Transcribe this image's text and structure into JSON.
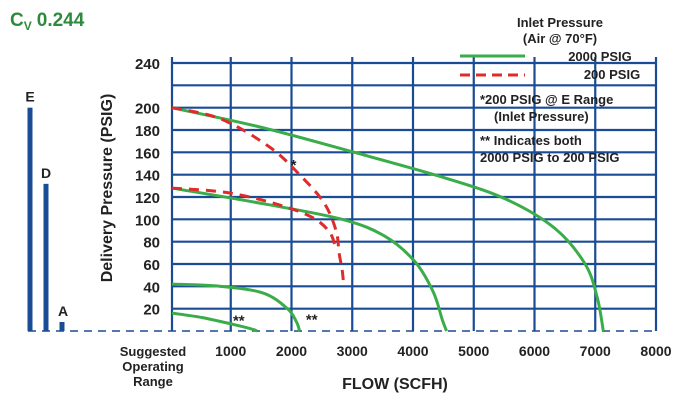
{
  "header": {
    "cv_prefix": "C",
    "cv_sub": "V",
    "cv_value": "0.244"
  },
  "legend": {
    "title_line1": "Inlet Pressure",
    "title_line2": "(Air @ 70°F)",
    "entries": [
      {
        "label": "2000 PSIG",
        "style": "solid",
        "color": "#3aac4a"
      },
      {
        "label": "200 PSIG",
        "style": "dashed",
        "color": "#e02b2b"
      }
    ]
  },
  "notes": {
    "asterisk_line1": "*200 PSIG @ E Range",
    "asterisk_line2": "(Inlet Pressure)",
    "double_line1": "** Indicates both",
    "double_line2": "2000 PSIG to 200 PSIG"
  },
  "range_label": {
    "line1": "Suggested",
    "line2": "Operating",
    "line3": "Range"
  },
  "colors": {
    "title": "#2e8a3e",
    "grid": "#1a4c96",
    "solid": "#3aac4a",
    "dashed": "#e02b2b",
    "text": "#222222"
  },
  "chart_data": {
    "type": "line",
    "xlabel": "FLOW (SCFH)",
    "ylabel": "Delivery Pressure (PSIG)",
    "xlim": [
      0,
      8000
    ],
    "ylim": [
      0,
      240
    ],
    "x_ticks": [
      1000,
      2000,
      3000,
      4000,
      5000,
      6000,
      7000,
      8000
    ],
    "y_ticks": [
      20,
      40,
      60,
      80,
      100,
      120,
      140,
      160,
      180,
      200,
      240
    ],
    "grid": true,
    "legend_position": "top-right",
    "ranges": [
      {
        "label": "E",
        "max": 200
      },
      {
        "label": "D",
        "max": 130
      },
      {
        "label": "A",
        "max": 5
      }
    ],
    "series": [
      {
        "name": "2000 PSIG",
        "style": "solid",
        "points": [
          [
            0,
            200
          ],
          [
            1500,
            182
          ],
          [
            3000,
            160
          ],
          [
            4500,
            137
          ],
          [
            5500,
            118
          ],
          [
            6300,
            92
          ],
          [
            6800,
            60
          ],
          [
            7000,
            30
          ],
          [
            7100,
            0
          ]
        ]
      },
      {
        "name": "2000 PSIG",
        "style": "solid",
        "points": [
          [
            0,
            128
          ],
          [
            1500,
            114
          ],
          [
            2800,
            100
          ],
          [
            3500,
            85
          ],
          [
            4000,
            62
          ],
          [
            4300,
            35
          ],
          [
            4450,
            10
          ],
          [
            4520,
            0
          ]
        ]
      },
      {
        "name": "2000 PSIG",
        "style": "solid",
        "points": [
          [
            0,
            42
          ],
          [
            800,
            40
          ],
          [
            1500,
            34
          ],
          [
            1900,
            20
          ],
          [
            2050,
            8
          ],
          [
            2100,
            0
          ]
        ]
      },
      {
        "name": "2000 PSIG",
        "style": "solid",
        "points": [
          [
            0,
            16
          ],
          [
            500,
            12
          ],
          [
            1000,
            6
          ],
          [
            1300,
            2
          ],
          [
            1400,
            0
          ]
        ]
      },
      {
        "name": "200 PSIG",
        "style": "dashed",
        "points": [
          [
            0,
            200
          ],
          [
            800,
            190
          ],
          [
            1600,
            165
          ],
          [
            2100,
            140
          ],
          [
            2500,
            115
          ],
          [
            2700,
            90
          ],
          [
            2750,
            70
          ],
          [
            2800,
            55
          ],
          [
            2820,
            45
          ]
        ]
      },
      {
        "name": "200 PSIG",
        "style": "dashed",
        "points": [
          [
            0,
            128
          ],
          [
            900,
            124
          ],
          [
            1700,
            114
          ],
          [
            2300,
            102
          ],
          [
            2600,
            88
          ],
          [
            2700,
            72
          ]
        ]
      }
    ],
    "annotations": [
      {
        "text": "*",
        "x": 2000,
        "y": 144
      },
      {
        "text": "**",
        "x": 1100,
        "y": 5
      },
      {
        "text": "**",
        "x": 2300,
        "y": 6
      }
    ]
  }
}
